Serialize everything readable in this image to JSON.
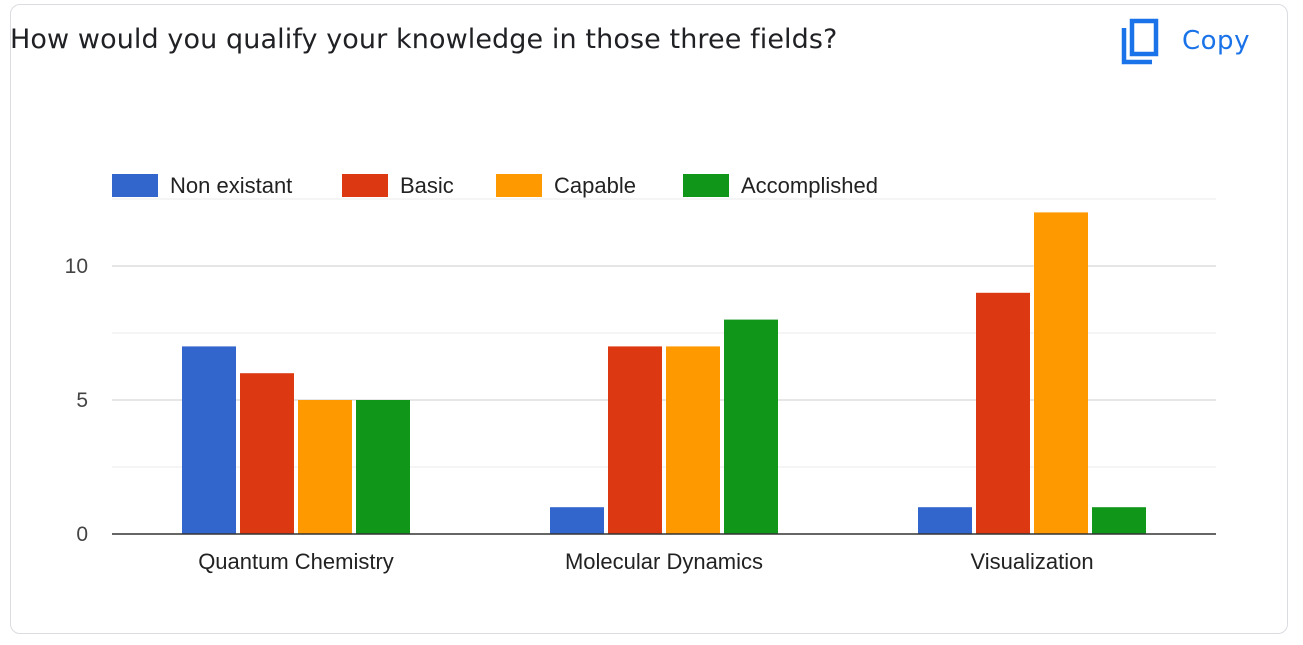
{
  "card": {
    "title": "How would you qualify your knowledge in those three fields?",
    "copy_label": "Copy",
    "copy_icon": "copy-icon"
  },
  "chart_data": {
    "type": "bar",
    "title": "",
    "xlabel": "",
    "ylabel": "",
    "categories": [
      "Quantum Chemistry",
      "Molecular Dynamics",
      "Visualization"
    ],
    "series": [
      {
        "name": "Non existant",
        "color": "#3366cc",
        "values": [
          7,
          1,
          1
        ]
      },
      {
        "name": "Basic",
        "color": "#dc3912",
        "values": [
          6,
          7,
          9
        ]
      },
      {
        "name": "Capable",
        "color": "#ff9900",
        "values": [
          5,
          7,
          12
        ]
      },
      {
        "name": "Accomplished",
        "color": "#109618",
        "values": [
          5,
          8,
          1
        ]
      }
    ],
    "y_ticks": [
      "0",
      "5",
      "10"
    ],
    "ylim": [
      0,
      12.5
    ],
    "grid": true,
    "legend_position": "top-left"
  }
}
